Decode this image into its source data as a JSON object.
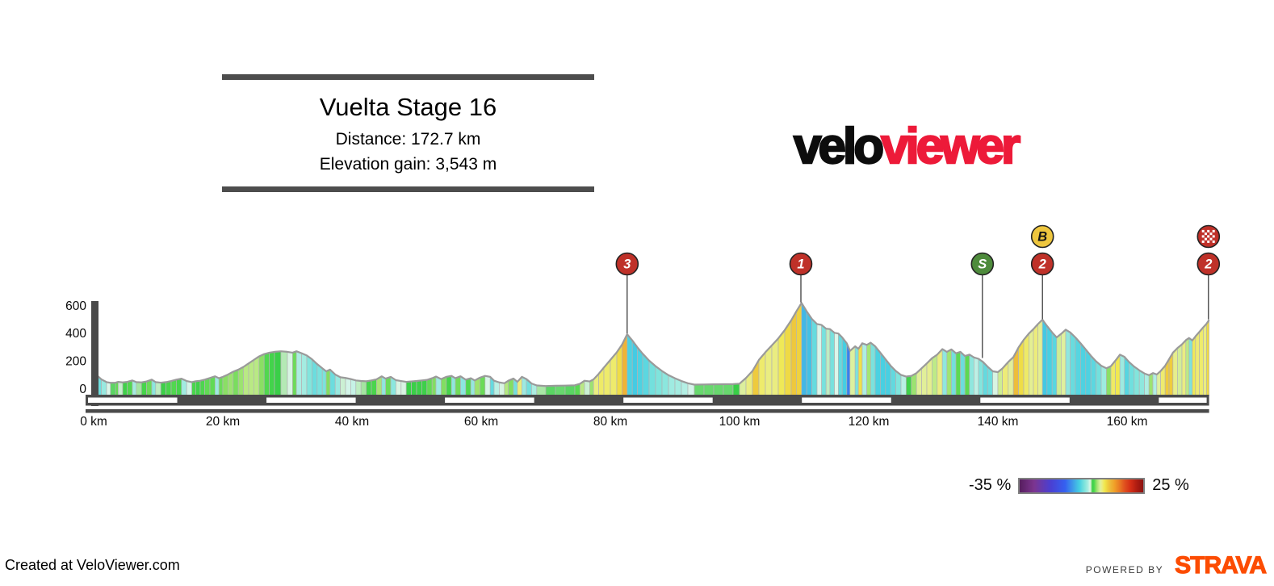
{
  "header": {
    "title": "Vuelta Stage 16",
    "distance": "Distance: 172.7 km",
    "elevation_gain": "Elevation gain: 3,543 m"
  },
  "logo": {
    "black_part": "velo",
    "red_part": "viewer",
    "red_color": "#ed1a39"
  },
  "legend": {
    "min_label": "-35 %",
    "max_label": "25 %"
  },
  "footer": {
    "credit": "Created at VeloViewer.com",
    "powered_by": "POWERED BY",
    "brand": "STRAVA",
    "brand_color": "#fc4c02"
  },
  "chart_data": {
    "type": "area",
    "title": "Vuelta Stage 16",
    "distance_km": 172.7,
    "elevation_gain_m": 3543,
    "x_unit": "km",
    "y_unit": "m",
    "x_range": [
      0,
      172.7
    ],
    "y_axis_ticks": [
      0,
      200,
      400,
      600
    ],
    "x_axis_ticks": [
      {
        "km": 0,
        "label": "0 km"
      },
      {
        "km": 20,
        "label": "20 km"
      },
      {
        "km": 40,
        "label": "40 km"
      },
      {
        "km": 60,
        "label": "60 km"
      },
      {
        "km": 80,
        "label": "80 km"
      },
      {
        "km": 100,
        "label": "100 km"
      },
      {
        "km": 120,
        "label": "120 km"
      },
      {
        "km": 140,
        "label": "140 km"
      },
      {
        "km": 160,
        "label": "160 km"
      }
    ],
    "axis_color": "#4a4a4a",
    "outline_color": "#9a9a9a",
    "scale_stripe_km": 13.816,
    "gradient_scale": {
      "min_pct": -35,
      "max_pct": 25,
      "stops": [
        [
          -35,
          "#571e5e"
        ],
        [
          -28,
          "#7c3590"
        ],
        [
          -20,
          "#4a3fd2"
        ],
        [
          -13,
          "#3560f0"
        ],
        [
          -9,
          "#3f9fe8"
        ],
        [
          -6,
          "#45cfe2"
        ],
        [
          -3.5,
          "#7fe4dc"
        ],
        [
          -1.8,
          "#a9ede2"
        ],
        [
          -0.8,
          "#ddf6ea"
        ],
        [
          -0.2,
          "#9fe39a"
        ],
        [
          0.3,
          "#38ce47"
        ],
        [
          1.2,
          "#4ed74e"
        ],
        [
          2.2,
          "#8fe066"
        ],
        [
          3.2,
          "#bcea86"
        ],
        [
          4.2,
          "#dff0a0"
        ],
        [
          5.2,
          "#edec79"
        ],
        [
          6.2,
          "#f0e84e"
        ],
        [
          7.5,
          "#efd23f"
        ],
        [
          9,
          "#edb93a"
        ],
        [
          11,
          "#f0a028"
        ],
        [
          13.5,
          "#e97a24"
        ],
        [
          16,
          "#e0501e"
        ],
        [
          19,
          "#d32c16"
        ],
        [
          22,
          "#ad1b11"
        ],
        [
          25,
          "#8b1210"
        ]
      ]
    },
    "markers": [
      {
        "name": "cat3-climb",
        "km": 82.6,
        "label": "3",
        "shape": "circle",
        "fill": "#bf3129",
        "text_color": "#ffffff",
        "row": 0,
        "line_to_m": 395
      },
      {
        "name": "cat1-climb",
        "km": 109.5,
        "label": "1",
        "shape": "circle",
        "fill": "#bf3129",
        "text_color": "#ffffff",
        "row": 0,
        "line_to_m": 618
      },
      {
        "name": "sprint",
        "km": 137.6,
        "label": "S",
        "shape": "circle",
        "fill": "#4e8b3c",
        "text_color": "#ffffff",
        "row": 0,
        "line_to_m": 218
      },
      {
        "name": "cat2-climb",
        "km": 146.9,
        "label": "2",
        "shape": "circle",
        "fill": "#bf3129",
        "text_color": "#ffffff",
        "row": 0,
        "line_to_m": 498
      },
      {
        "name": "bonus-seconds",
        "km": 146.9,
        "label": "B",
        "shape": "circle",
        "fill": "#eec63e",
        "text_color": "#141414",
        "row": 1,
        "line_to_m": null
      },
      {
        "name": "cat2-finish",
        "km": 172.6,
        "label": "2",
        "shape": "circle",
        "fill": "#bf3129",
        "text_color": "#ffffff",
        "row": 0,
        "line_to_m": 496
      },
      {
        "name": "summit-finish",
        "km": 172.6,
        "label": "",
        "shape": "checkered",
        "fill": "#bf3129",
        "text_color": "#ffffff",
        "row": 1,
        "line_to_m": null
      }
    ],
    "profile": [
      [
        0,
        55
      ],
      [
        0.6,
        95
      ],
      [
        1.2,
        70
      ],
      [
        2,
        50
      ],
      [
        2.6,
        45
      ],
      [
        3.4,
        46
      ],
      [
        3.8,
        52
      ],
      [
        4.5,
        48
      ],
      [
        5.2,
        52
      ],
      [
        6,
        62
      ],
      [
        6.6,
        50
      ],
      [
        7.4,
        48
      ],
      [
        8.2,
        55
      ],
      [
        9,
        68
      ],
      [
        9.6,
        50
      ],
      [
        10.4,
        46
      ],
      [
        11.2,
        50
      ],
      [
        12,
        58
      ],
      [
        12.8,
        68
      ],
      [
        13.6,
        75
      ],
      [
        14.4,
        58
      ],
      [
        15.2,
        50
      ],
      [
        15.8,
        56
      ],
      [
        16.5,
        60
      ],
      [
        17.2,
        68
      ],
      [
        18,
        80
      ],
      [
        18.8,
        92
      ],
      [
        19.4,
        78
      ],
      [
        20,
        88
      ],
      [
        20.8,
        105
      ],
      [
        21.6,
        125
      ],
      [
        22.4,
        140
      ],
      [
        23.2,
        160
      ],
      [
        24,
        185
      ],
      [
        24.8,
        210
      ],
      [
        25.6,
        235
      ],
      [
        26.4,
        252
      ],
      [
        27.2,
        262
      ],
      [
        28,
        268
      ],
      [
        29,
        272
      ],
      [
        30,
        268
      ],
      [
        30.8,
        262
      ],
      [
        31.4,
        272
      ],
      [
        32.2,
        258
      ],
      [
        33,
        242
      ],
      [
        33.8,
        215
      ],
      [
        34.6,
        180
      ],
      [
        35.4,
        150
      ],
      [
        36,
        128
      ],
      [
        36.6,
        140
      ],
      [
        37.4,
        105
      ],
      [
        38.2,
        85
      ],
      [
        39,
        80
      ],
      [
        39.8,
        72
      ],
      [
        40.6,
        62
      ],
      [
        41.4,
        58
      ],
      [
        42.2,
        56
      ],
      [
        43,
        62
      ],
      [
        43.8,
        70
      ],
      [
        44.6,
        92
      ],
      [
        45.2,
        75
      ],
      [
        46,
        88
      ],
      [
        46.8,
        64
      ],
      [
        47.6,
        58
      ],
      [
        48.4,
        52
      ],
      [
        49.2,
        55
      ],
      [
        50,
        58
      ],
      [
        50.8,
        62
      ],
      [
        51.6,
        66
      ],
      [
        52.4,
        78
      ],
      [
        53,
        90
      ],
      [
        53.8,
        72
      ],
      [
        54.6,
        88
      ],
      [
        55.4,
        95
      ],
      [
        56,
        78
      ],
      [
        56.8,
        92
      ],
      [
        57.6,
        68
      ],
      [
        58.4,
        78
      ],
      [
        59,
        62
      ],
      [
        59.8,
        82
      ],
      [
        60.6,
        95
      ],
      [
        61.4,
        88
      ],
      [
        62,
        60
      ],
      [
        62.8,
        48
      ],
      [
        63.6,
        42
      ],
      [
        64.2,
        60
      ],
      [
        65,
        76
      ],
      [
        65.6,
        52
      ],
      [
        66.3,
        88
      ],
      [
        67,
        72
      ],
      [
        67.8,
        40
      ],
      [
        68.6,
        26
      ],
      [
        70,
        22
      ],
      [
        71.5,
        24
      ],
      [
        73,
        25
      ],
      [
        74.5,
        27
      ],
      [
        75.3,
        38
      ],
      [
        76,
        60
      ],
      [
        76.8,
        55
      ],
      [
        77.4,
        70
      ],
      [
        78.2,
        110
      ],
      [
        79,
        155
      ],
      [
        80,
        210
      ],
      [
        81,
        265
      ],
      [
        81.8,
        320
      ],
      [
        82.6,
        395
      ],
      [
        83.4,
        350
      ],
      [
        84.2,
        300
      ],
      [
        85,
        255
      ],
      [
        86,
        205
      ],
      [
        87,
        165
      ],
      [
        88,
        130
      ],
      [
        89,
        100
      ],
      [
        90,
        78
      ],
      [
        91,
        58
      ],
      [
        92,
        42
      ],
      [
        93,
        32
      ],
      [
        94.5,
        33
      ],
      [
        96,
        34
      ],
      [
        97.5,
        35
      ],
      [
        99,
        36
      ],
      [
        100,
        39
      ],
      [
        101,
        80
      ],
      [
        102,
        130
      ],
      [
        103,
        210
      ],
      [
        104,
        265
      ],
      [
        105,
        315
      ],
      [
        106,
        365
      ],
      [
        107,
        425
      ],
      [
        108,
        495
      ],
      [
        108.8,
        560
      ],
      [
        109.6,
        620
      ],
      [
        110.4,
        560
      ],
      [
        111.2,
        505
      ],
      [
        112,
        468
      ],
      [
        112.7,
        462
      ],
      [
        113.4,
        435
      ],
      [
        114,
        432
      ],
      [
        114.7,
        405
      ],
      [
        115.3,
        400
      ],
      [
        115.9,
        372
      ],
      [
        116.6,
        330
      ],
      [
        117.1,
        275
      ],
      [
        117.9,
        308
      ],
      [
        118.4,
        290
      ],
      [
        119,
        330
      ],
      [
        119.7,
        318
      ],
      [
        120.3,
        334
      ],
      [
        121,
        308
      ],
      [
        121.8,
        262
      ],
      [
        122.6,
        215
      ],
      [
        123.4,
        168
      ],
      [
        124.2,
        130
      ],
      [
        125,
        102
      ],
      [
        125.8,
        90
      ],
      [
        126.6,
        95
      ],
      [
        127.4,
        115
      ],
      [
        128.2,
        150
      ],
      [
        129,
        185
      ],
      [
        129.8,
        222
      ],
      [
        130.6,
        248
      ],
      [
        131.4,
        288
      ],
      [
        132.1,
        268
      ],
      [
        132.8,
        286
      ],
      [
        133.5,
        258
      ],
      [
        134.2,
        268
      ],
      [
        134.9,
        238
      ],
      [
        135.6,
        248
      ],
      [
        136.3,
        228
      ],
      [
        137,
        218
      ],
      [
        137.7,
        195
      ],
      [
        138.4,
        162
      ],
      [
        139.2,
        128
      ],
      [
        140,
        122
      ],
      [
        140.7,
        148
      ],
      [
        141.6,
        195
      ],
      [
        142.4,
        230
      ],
      [
        143.2,
        300
      ],
      [
        144,
        355
      ],
      [
        144.8,
        400
      ],
      [
        145.5,
        432
      ],
      [
        146.2,
        468
      ],
      [
        146.9,
        500
      ],
      [
        147.6,
        455
      ],
      [
        148.4,
        408
      ],
      [
        149.1,
        372
      ],
      [
        149.8,
        398
      ],
      [
        150.5,
        428
      ],
      [
        151.2,
        408
      ],
      [
        152,
        372
      ],
      [
        152.8,
        330
      ],
      [
        153.6,
        285
      ],
      [
        154.4,
        240
      ],
      [
        155.2,
        200
      ],
      [
        156,
        168
      ],
      [
        156.8,
        150
      ],
      [
        157.5,
        165
      ],
      [
        158.2,
        205
      ],
      [
        158.9,
        248
      ],
      [
        159.6,
        232
      ],
      [
        160.3,
        195
      ],
      [
        161.1,
        162
      ],
      [
        161.9,
        135
      ],
      [
        162.7,
        112
      ],
      [
        163.4,
        100
      ],
      [
        164,
        115
      ],
      [
        164.6,
        105
      ],
      [
        165.2,
        130
      ],
      [
        165.9,
        168
      ],
      [
        166.5,
        215
      ],
      [
        167.1,
        262
      ],
      [
        167.8,
        295
      ],
      [
        168.5,
        322
      ],
      [
        169.1,
        352
      ],
      [
        169.6,
        368
      ],
      [
        170.1,
        350
      ],
      [
        170.6,
        380
      ],
      [
        171.2,
        412
      ],
      [
        171.8,
        445
      ],
      [
        172.3,
        470
      ],
      [
        172.7,
        498
      ]
    ]
  }
}
